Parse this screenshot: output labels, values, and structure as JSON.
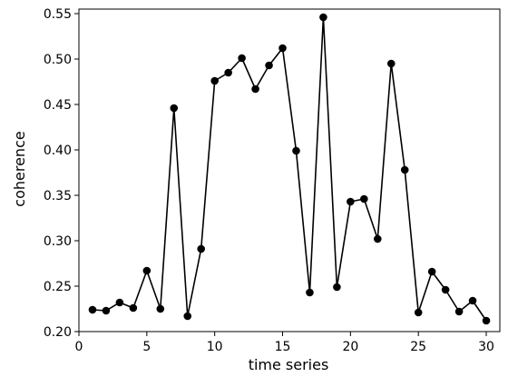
{
  "chart_data": {
    "type": "line",
    "title": "",
    "xlabel": "time series",
    "ylabel": "coherence",
    "xlim": [
      0,
      31
    ],
    "ylim": [
      0.2,
      0.555
    ],
    "grid": false,
    "x_ticks": [
      0,
      5,
      10,
      15,
      20,
      25,
      30
    ],
    "y_ticks": [
      0.2,
      0.25,
      0.3,
      0.35,
      0.4,
      0.45,
      0.5,
      0.55
    ],
    "y_tick_labels": [
      "0.20",
      "0.25",
      "0.30",
      "0.35",
      "0.40",
      "0.45",
      "0.50",
      "0.55"
    ],
    "colors": {
      "line": "#000000",
      "marker": "#000000"
    },
    "series": [
      {
        "x": [
          1,
          2,
          3,
          4,
          5,
          6,
          7,
          8,
          9,
          10,
          11,
          12,
          13,
          14,
          15,
          16,
          17,
          18,
          19,
          20,
          21,
          22,
          23,
          24,
          25,
          26,
          27,
          28,
          29,
          30
        ],
        "values": [
          0.224,
          0.223,
          0.232,
          0.226,
          0.267,
          0.225,
          0.446,
          0.217,
          0.291,
          0.476,
          0.485,
          0.501,
          0.467,
          0.493,
          0.512,
          0.399,
          0.243,
          0.546,
          0.249,
          0.343,
          0.346,
          0.302,
          0.495,
          0.378,
          0.221,
          0.266,
          0.246,
          0.222,
          0.234,
          0.212
        ]
      }
    ]
  }
}
